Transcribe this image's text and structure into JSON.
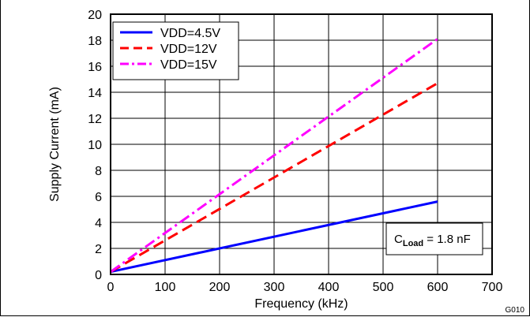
{
  "chart_data": {
    "type": "line",
    "xlabel": "Frequency (kHz)",
    "ylabel": "Supply Current (mA)",
    "xlim": [
      0,
      700
    ],
    "ylim": [
      0,
      20
    ],
    "xticks": [
      0,
      100,
      200,
      300,
      400,
      500,
      600,
      700
    ],
    "yticks": [
      0,
      2,
      4,
      6,
      8,
      10,
      12,
      14,
      16,
      18,
      20
    ],
    "grid": true,
    "legend_position": "top-left",
    "series": [
      {
        "name": "VDD=4.5V",
        "color": "#0000ff",
        "style": "solid",
        "x": [
          0,
          600
        ],
        "y": [
          0.2,
          5.6
        ]
      },
      {
        "name": "VDD=12V",
        "color": "#ff0000",
        "style": "dash",
        "x": [
          0,
          600
        ],
        "y": [
          0.2,
          14.7
        ]
      },
      {
        "name": "VDD=15V",
        "color": "#ff00ff",
        "style": "dashdot",
        "x": [
          0,
          600
        ],
        "y": [
          0.2,
          18.1
        ]
      }
    ],
    "annotation": {
      "prefix": "C",
      "subscript": "Load",
      "suffix": " = 1.8 nF"
    },
    "figure_id": "G010"
  }
}
